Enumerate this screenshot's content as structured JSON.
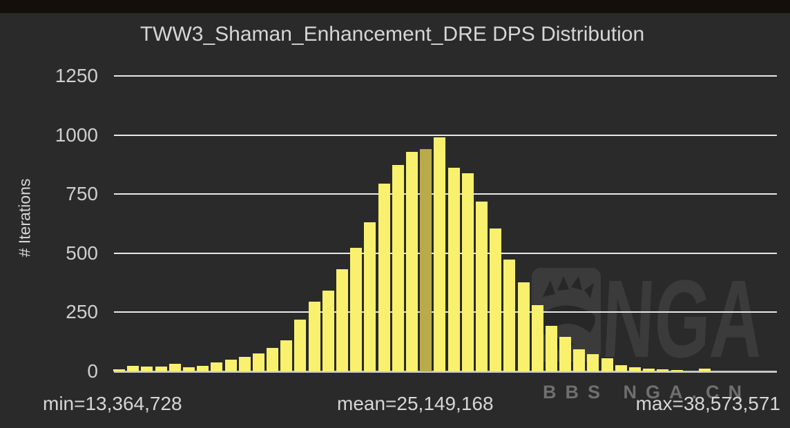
{
  "chart_data": {
    "type": "bar",
    "title": "TWW3_Shaman_Enhancement_DRE DPS Distribution",
    "ylabel": "# Iterations",
    "xlabel": "",
    "yticks": [
      0,
      250,
      500,
      750,
      1000,
      1250
    ],
    "ylim": [
      0,
      1290
    ],
    "grid": true,
    "legend": false,
    "values": [
      8,
      24,
      20,
      20,
      32,
      17,
      24,
      38,
      50,
      62,
      76,
      100,
      130,
      220,
      296,
      343,
      431,
      522,
      630,
      794,
      873,
      930,
      940,
      990,
      862,
      838,
      718,
      604,
      472,
      376,
      279,
      194,
      147,
      94,
      74,
      56,
      25,
      18,
      13,
      9,
      5,
      0,
      11
    ],
    "mean_bar_index": 22,
    "dps_min": 13364728,
    "dps_mean": 25149168,
    "dps_max": 38573571,
    "annotations": {
      "min": "min=13,364,728",
      "mean": "mean=25,149,168",
      "max": "max=38,573,571"
    },
    "colors": {
      "background": "#2a2a2a",
      "top_strip": "#140f0b",
      "bar": "#f9f16d",
      "mean_bar": "#b9ab4b",
      "grid": "#e9e9e9",
      "baseline": "#c6c6c6",
      "text": "#d6d6d6"
    }
  },
  "watermark": {
    "logo_text": "NGA",
    "footer_text": "BBS NGA.CN",
    "logo_color": "#3b3b3b",
    "footer_color": "#6f6f6f"
  }
}
